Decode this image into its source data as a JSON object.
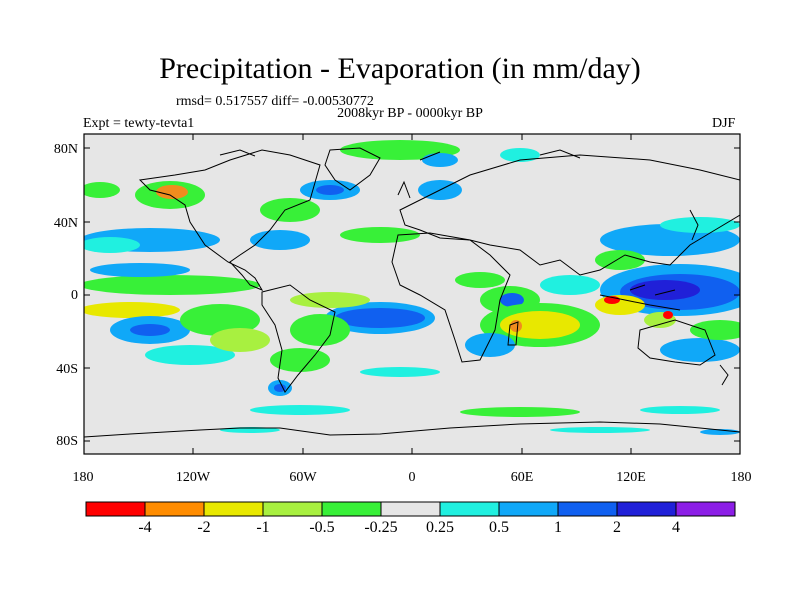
{
  "title": "Precipitation - Evaporation (in mm/day)",
  "stats": "rmsd= 0.517557 diff= -0.00530772",
  "subtitle": "2008kyr BP - 0000kyr BP",
  "experiment": "Expt = tewty-tevta1",
  "season": "DJF",
  "lat_labels": [
    "80N",
    "40N",
    "0",
    "40S",
    "80S"
  ],
  "lon_labels": [
    "180",
    "120W",
    "60W",
    "0",
    "60E",
    "120E",
    "180"
  ],
  "colorbar": {
    "labels": [
      "-4",
      "-2",
      "-1",
      "-0.5",
      "-0.25",
      "0.25",
      "0.5",
      "1",
      "2",
      "4"
    ],
    "colors": [
      "#ff0000",
      "#ff8c00",
      "#e8e800",
      "#a8f040",
      "#38f038",
      "#e6e6e6",
      "#20f0e0",
      "#10a8f8",
      "#1060f0",
      "#2020d8",
      "#8c1ee6"
    ]
  },
  "land_color": "#e6e6e6"
}
